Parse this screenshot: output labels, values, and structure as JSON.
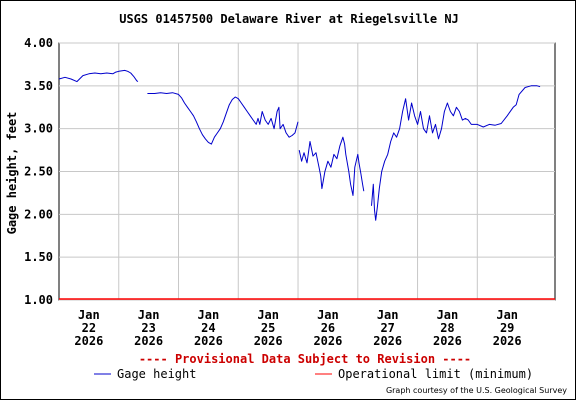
{
  "chart_data": {
    "type": "line",
    "title": "USGS 01457500 Delaware River at Riegelsville NJ",
    "ylabel": "Gage height, feet",
    "xlabel": "",
    "ylim": [
      1.0,
      4.0
    ],
    "yticks": [
      "4.00",
      "3.50",
      "3.00",
      "2.50",
      "2.00",
      "1.50",
      "1.00"
    ],
    "ytick_values": [
      4.0,
      3.5,
      3.0,
      2.5,
      2.0,
      1.5,
      1.0
    ],
    "xlim": [
      21.5,
      29.8
    ],
    "xticks": [
      {
        "day": 22,
        "month": "Jan",
        "date": "22",
        "year": "2026"
      },
      {
        "day": 23,
        "month": "Jan",
        "date": "23",
        "year": "2026"
      },
      {
        "day": 24,
        "month": "Jan",
        "date": "24",
        "year": "2026"
      },
      {
        "day": 25,
        "month": "Jan",
        "date": "25",
        "year": "2026"
      },
      {
        "day": 26,
        "month": "Jan",
        "date": "26",
        "year": "2026"
      },
      {
        "day": 27,
        "month": "Jan",
        "date": "27",
        "year": "2026"
      },
      {
        "day": 28,
        "month": "Jan",
        "date": "28",
        "year": "2026"
      },
      {
        "day": 29,
        "month": "Jan",
        "date": "29",
        "year": "2026"
      }
    ],
    "grid": true,
    "legend_position": "bottom",
    "series": [
      {
        "name": "Gage height",
        "color": "#0000cc",
        "segments": [
          [
            [
              21.5,
              3.58
            ],
            [
              21.6,
              3.6
            ],
            [
              21.7,
              3.58
            ],
            [
              21.8,
              3.55
            ],
            [
              21.9,
              3.62
            ],
            [
              22.0,
              3.64
            ],
            [
              22.1,
              3.65
            ],
            [
              22.2,
              3.64
            ],
            [
              22.3,
              3.65
            ],
            [
              22.4,
              3.64
            ],
            [
              22.45,
              3.66
            ],
            [
              22.5,
              3.67
            ],
            [
              22.6,
              3.68
            ],
            [
              22.65,
              3.67
            ],
            [
              22.7,
              3.65
            ],
            [
              22.75,
              3.61
            ],
            [
              22.8,
              3.56
            ],
            [
              22.82,
              3.55
            ]
          ],
          [
            [
              22.98,
              3.41
            ],
            [
              23.1,
              3.41
            ],
            [
              23.2,
              3.42
            ],
            [
              23.3,
              3.41
            ],
            [
              23.4,
              3.42
            ],
            [
              23.5,
              3.4
            ],
            [
              23.55,
              3.36
            ],
            [
              23.6,
              3.3
            ],
            [
              23.65,
              3.25
            ],
            [
              23.7,
              3.2
            ],
            [
              23.75,
              3.15
            ],
            [
              23.8,
              3.08
            ],
            [
              23.85,
              3.0
            ],
            [
              23.9,
              2.93
            ],
            [
              23.95,
              2.88
            ],
            [
              24.0,
              2.84
            ],
            [
              24.05,
              2.82
            ],
            [
              24.1,
              2.9
            ],
            [
              24.15,
              2.95
            ],
            [
              24.2,
              3.0
            ],
            [
              24.25,
              3.08
            ],
            [
              24.3,
              3.18
            ],
            [
              24.35,
              3.28
            ],
            [
              24.4,
              3.34
            ],
            [
              24.45,
              3.37
            ],
            [
              24.5,
              3.35
            ],
            [
              24.55,
              3.3
            ],
            [
              24.6,
              3.25
            ],
            [
              24.65,
              3.2
            ],
            [
              24.7,
              3.15
            ],
            [
              24.75,
              3.1
            ],
            [
              24.8,
              3.05
            ],
            [
              24.83,
              3.12
            ],
            [
              24.86,
              3.05
            ],
            [
              24.9,
              3.2
            ],
            [
              24.95,
              3.1
            ],
            [
              25.0,
              3.05
            ],
            [
              25.05,
              3.12
            ],
            [
              25.1,
              3.0
            ],
            [
              25.15,
              3.2
            ],
            [
              25.18,
              3.25
            ],
            [
              25.2,
              3.0
            ],
            [
              25.25,
              3.05
            ],
            [
              25.3,
              2.95
            ],
            [
              25.35,
              2.9
            ],
            [
              25.4,
              2.92
            ],
            [
              25.45,
              2.95
            ],
            [
              25.5,
              3.08
            ]
          ],
          [
            [
              25.52,
              2.75
            ],
            [
              25.56,
              2.62
            ],
            [
              25.6,
              2.72
            ],
            [
              25.65,
              2.6
            ],
            [
              25.7,
              2.85
            ],
            [
              25.75,
              2.68
            ],
            [
              25.8,
              2.72
            ],
            [
              25.85,
              2.55
            ],
            [
              25.88,
              2.45
            ],
            [
              25.9,
              2.3
            ],
            [
              25.95,
              2.5
            ],
            [
              26.0,
              2.62
            ],
            [
              26.05,
              2.55
            ],
            [
              26.1,
              2.7
            ],
            [
              26.15,
              2.65
            ],
            [
              26.2,
              2.8
            ],
            [
              26.25,
              2.9
            ],
            [
              26.28,
              2.82
            ],
            [
              26.3,
              2.7
            ],
            [
              26.35,
              2.5
            ],
            [
              26.38,
              2.35
            ],
            [
              26.42,
              2.22
            ],
            [
              26.45,
              2.55
            ],
            [
              26.5,
              2.7
            ],
            [
              26.52,
              2.6
            ],
            [
              26.55,
              2.48
            ],
            [
              26.58,
              2.35
            ],
            [
              26.6,
              2.27
            ]
          ],
          [
            [
              26.73,
              2.1
            ],
            [
              26.76,
              2.35
            ],
            [
              26.78,
              2.05
            ],
            [
              26.8,
              1.93
            ],
            [
              26.83,
              2.1
            ],
            [
              26.86,
              2.3
            ],
            [
              26.9,
              2.5
            ],
            [
              26.95,
              2.62
            ],
            [
              27.0,
              2.7
            ],
            [
              27.05,
              2.85
            ],
            [
              27.1,
              2.95
            ],
            [
              27.15,
              2.9
            ],
            [
              27.2,
              3.0
            ],
            [
              27.25,
              3.2
            ],
            [
              27.3,
              3.35
            ],
            [
              27.35,
              3.1
            ],
            [
              27.4,
              3.3
            ],
            [
              27.45,
              3.15
            ],
            [
              27.5,
              3.05
            ],
            [
              27.55,
              3.2
            ],
            [
              27.6,
              3.0
            ],
            [
              27.65,
              2.95
            ],
            [
              27.7,
              3.15
            ],
            [
              27.75,
              2.95
            ],
            [
              27.8,
              3.05
            ],
            [
              27.85,
              2.88
            ],
            [
              27.9,
              3.0
            ],
            [
              27.95,
              3.2
            ],
            [
              28.0,
              3.3
            ],
            [
              28.05,
              3.2
            ],
            [
              28.1,
              3.15
            ],
            [
              28.15,
              3.25
            ],
            [
              28.2,
              3.2
            ],
            [
              28.25,
              3.1
            ],
            [
              28.3,
              3.12
            ],
            [
              28.35,
              3.1
            ],
            [
              28.4,
              3.05
            ],
            [
              28.5,
              3.05
            ],
            [
              28.6,
              3.02
            ],
            [
              28.7,
              3.05
            ],
            [
              28.8,
              3.04
            ],
            [
              28.9,
              3.06
            ],
            [
              29.0,
              3.15
            ],
            [
              29.1,
              3.25
            ],
            [
              29.15,
              3.28
            ],
            [
              29.2,
              3.4
            ],
            [
              29.3,
              3.48
            ],
            [
              29.4,
              3.5
            ],
            [
              29.5,
              3.5
            ],
            [
              29.55,
              3.49
            ]
          ]
        ]
      },
      {
        "name": "Operational limit (minimum)",
        "color": "#ff0000",
        "constant": 1.0
      }
    ]
  },
  "provisional_text": "---- Provisional Data Subject to Revision ----",
  "courtesy_text": "Graph courtesy of the U.S. Geological Survey",
  "colors": {
    "series": "#0000cc",
    "limit": "#ff0000",
    "grid": "#c8c8c8",
    "provisional": "#cc0000"
  }
}
